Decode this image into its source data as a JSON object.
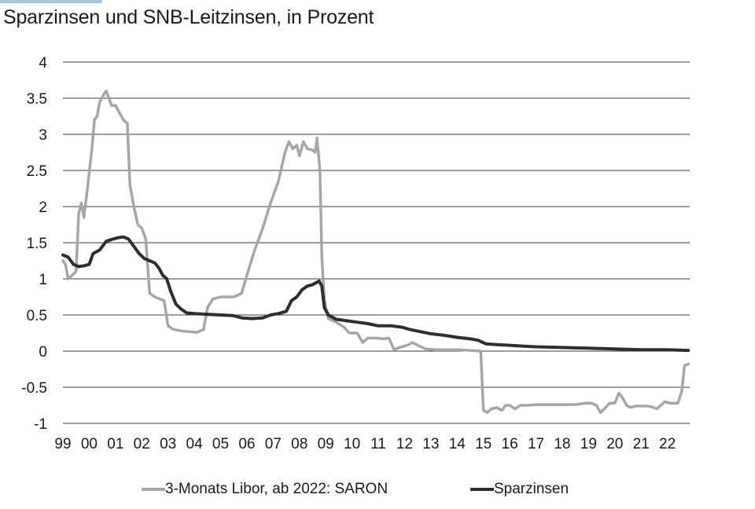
{
  "chart_data": {
    "type": "line",
    "title": "Sparzinsen und SNB-Leitzinsen, in Prozent",
    "xlabel": "",
    "ylabel": "",
    "ylim": [
      -1,
      4
    ],
    "xlim": [
      1999.0,
      2022.85
    ],
    "yticks": [
      {
        "value": 4,
        "label": "4"
      },
      {
        "value": 3.5,
        "label": "3.5"
      },
      {
        "value": 3,
        "label": "3"
      },
      {
        "value": 2.5,
        "label": "2.5"
      },
      {
        "value": 2,
        "label": "2"
      },
      {
        "value": 1.5,
        "label": "1.5"
      },
      {
        "value": 1,
        "label": "1"
      },
      {
        "value": 0.5,
        "label": "0.5"
      },
      {
        "value": 0,
        "label": "0"
      },
      {
        "value": -0.5,
        "label": "-0.5"
      },
      {
        "value": -1,
        "label": "-1"
      }
    ],
    "xticks": [
      {
        "value": 1999,
        "label": "99"
      },
      {
        "value": 2000,
        "label": "00"
      },
      {
        "value": 2001,
        "label": "01"
      },
      {
        "value": 2002,
        "label": "02"
      },
      {
        "value": 2003,
        "label": "03"
      },
      {
        "value": 2004,
        "label": "04"
      },
      {
        "value": 2005,
        "label": "05"
      },
      {
        "value": 2006,
        "label": "06"
      },
      {
        "value": 2007,
        "label": "07"
      },
      {
        "value": 2008,
        "label": "08"
      },
      {
        "value": 2009,
        "label": "09"
      },
      {
        "value": 2010,
        "label": "10"
      },
      {
        "value": 2011,
        "label": "11"
      },
      {
        "value": 2012,
        "label": "12"
      },
      {
        "value": 2013,
        "label": "13"
      },
      {
        "value": 2014,
        "label": "14"
      },
      {
        "value": 2015,
        "label": "15"
      },
      {
        "value": 2016,
        "label": "16"
      },
      {
        "value": 2017,
        "label": "17"
      },
      {
        "value": 2018,
        "label": "18"
      },
      {
        "value": 2019,
        "label": "19"
      },
      {
        "value": 2020,
        "label": "20"
      },
      {
        "value": 2021,
        "label": "21"
      },
      {
        "value": 2022,
        "label": "22"
      }
    ],
    "grid": "horizontal",
    "legend_position": "bottom",
    "series": [
      {
        "name": "3-Monats Libor, ab 2022: SARON",
        "color": "#a6a6a6",
        "points": [
          [
            1999.0,
            1.25
          ],
          [
            1999.1,
            1.2
          ],
          [
            1999.2,
            1.0
          ],
          [
            1999.35,
            1.05
          ],
          [
            1999.5,
            1.1
          ],
          [
            1999.6,
            1.9
          ],
          [
            1999.7,
            2.05
          ],
          [
            1999.8,
            1.85
          ],
          [
            1999.95,
            2.3
          ],
          [
            2000.1,
            2.8
          ],
          [
            2000.2,
            3.2
          ],
          [
            2000.3,
            3.25
          ],
          [
            2000.4,
            3.45
          ],
          [
            2000.55,
            3.55
          ],
          [
            2000.65,
            3.6
          ],
          [
            2000.75,
            3.5
          ],
          [
            2000.85,
            3.4
          ],
          [
            2001.0,
            3.4
          ],
          [
            2001.15,
            3.3
          ],
          [
            2001.3,
            3.2
          ],
          [
            2001.45,
            3.15
          ],
          [
            2001.55,
            2.3
          ],
          [
            2001.7,
            2.0
          ],
          [
            2001.85,
            1.75
          ],
          [
            2002.0,
            1.7
          ],
          [
            2002.15,
            1.55
          ],
          [
            2002.3,
            0.8
          ],
          [
            2002.5,
            0.75
          ],
          [
            2002.7,
            0.72
          ],
          [
            2002.85,
            0.7
          ],
          [
            2003.0,
            0.35
          ],
          [
            2003.2,
            0.3
          ],
          [
            2003.5,
            0.28
          ],
          [
            2003.8,
            0.27
          ],
          [
            2004.1,
            0.26
          ],
          [
            2004.35,
            0.3
          ],
          [
            2004.5,
            0.6
          ],
          [
            2004.7,
            0.72
          ],
          [
            2005.0,
            0.75
          ],
          [
            2005.5,
            0.75
          ],
          [
            2005.8,
            0.8
          ],
          [
            2006.0,
            1.05
          ],
          [
            2006.3,
            1.4
          ],
          [
            2006.6,
            1.7
          ],
          [
            2006.9,
            2.05
          ],
          [
            2007.2,
            2.35
          ],
          [
            2007.45,
            2.75
          ],
          [
            2007.6,
            2.9
          ],
          [
            2007.75,
            2.8
          ],
          [
            2007.9,
            2.85
          ],
          [
            2008.0,
            2.7
          ],
          [
            2008.15,
            2.9
          ],
          [
            2008.3,
            2.8
          ],
          [
            2008.5,
            2.78
          ],
          [
            2008.6,
            2.75
          ],
          [
            2008.67,
            2.95
          ],
          [
            2008.78,
            2.5
          ],
          [
            2008.85,
            1.3
          ],
          [
            2008.95,
            0.7
          ],
          [
            2009.1,
            0.45
          ],
          [
            2009.4,
            0.4
          ],
          [
            2009.7,
            0.33
          ],
          [
            2009.9,
            0.25
          ],
          [
            2010.2,
            0.25
          ],
          [
            2010.4,
            0.12
          ],
          [
            2010.6,
            0.18
          ],
          [
            2010.9,
            0.18
          ],
          [
            2011.2,
            0.17
          ],
          [
            2011.4,
            0.18
          ],
          [
            2011.6,
            0.02
          ],
          [
            2011.8,
            0.05
          ],
          [
            2012.1,
            0.08
          ],
          [
            2012.3,
            0.12
          ],
          [
            2012.5,
            0.08
          ],
          [
            2012.8,
            0.03
          ],
          [
            2013.2,
            0.02
          ],
          [
            2014.0,
            0.02
          ],
          [
            2014.5,
            0.01
          ],
          [
            2014.9,
            0.0
          ],
          [
            2015.0,
            -0.82
          ],
          [
            2015.15,
            -0.85
          ],
          [
            2015.3,
            -0.8
          ],
          [
            2015.5,
            -0.78
          ],
          [
            2015.7,
            -0.82
          ],
          [
            2015.85,
            -0.75
          ],
          [
            2016.0,
            -0.75
          ],
          [
            2016.2,
            -0.8
          ],
          [
            2016.4,
            -0.75
          ],
          [
            2016.7,
            -0.75
          ],
          [
            2017.0,
            -0.74
          ],
          [
            2017.5,
            -0.74
          ],
          [
            2018.0,
            -0.74
          ],
          [
            2018.5,
            -0.74
          ],
          [
            2018.9,
            -0.72
          ],
          [
            2019.1,
            -0.72
          ],
          [
            2019.3,
            -0.75
          ],
          [
            2019.45,
            -0.85
          ],
          [
            2019.6,
            -0.8
          ],
          [
            2019.8,
            -0.72
          ],
          [
            2020.0,
            -0.72
          ],
          [
            2020.15,
            -0.58
          ],
          [
            2020.3,
            -0.65
          ],
          [
            2020.45,
            -0.75
          ],
          [
            2020.6,
            -0.78
          ],
          [
            2020.8,
            -0.76
          ],
          [
            2021.0,
            -0.76
          ],
          [
            2021.2,
            -0.76
          ],
          [
            2021.4,
            -0.77
          ],
          [
            2021.6,
            -0.8
          ],
          [
            2021.75,
            -0.75
          ],
          [
            2021.9,
            -0.7
          ],
          [
            2022.1,
            -0.72
          ],
          [
            2022.4,
            -0.72
          ],
          [
            2022.55,
            -0.55
          ],
          [
            2022.65,
            -0.2
          ],
          [
            2022.8,
            -0.18
          ]
        ]
      },
      {
        "name": "Sparzinsen",
        "color": "#2e2e2e",
        "points": [
          [
            1999.0,
            1.33
          ],
          [
            1999.2,
            1.3
          ],
          [
            1999.4,
            1.2
          ],
          [
            1999.6,
            1.17
          ],
          [
            1999.8,
            1.18
          ],
          [
            2000.0,
            1.2
          ],
          [
            2000.15,
            1.35
          ],
          [
            2000.4,
            1.4
          ],
          [
            2000.65,
            1.52
          ],
          [
            2000.9,
            1.55
          ],
          [
            2001.1,
            1.57
          ],
          [
            2001.3,
            1.58
          ],
          [
            2001.5,
            1.55
          ],
          [
            2001.7,
            1.45
          ],
          [
            2001.9,
            1.35
          ],
          [
            2002.1,
            1.28
          ],
          [
            2002.3,
            1.25
          ],
          [
            2002.5,
            1.22
          ],
          [
            2002.65,
            1.15
          ],
          [
            2002.8,
            1.05
          ],
          [
            2002.95,
            1.0
          ],
          [
            2003.1,
            0.83
          ],
          [
            2003.3,
            0.65
          ],
          [
            2003.5,
            0.58
          ],
          [
            2003.7,
            0.53
          ],
          [
            2004.0,
            0.52
          ],
          [
            2004.5,
            0.51
          ],
          [
            2005.0,
            0.5
          ],
          [
            2005.5,
            0.49
          ],
          [
            2005.8,
            0.46
          ],
          [
            2006.2,
            0.45
          ],
          [
            2006.6,
            0.46
          ],
          [
            2006.9,
            0.5
          ],
          [
            2007.2,
            0.52
          ],
          [
            2007.5,
            0.55
          ],
          [
            2007.7,
            0.7
          ],
          [
            2007.9,
            0.75
          ],
          [
            2008.1,
            0.85
          ],
          [
            2008.3,
            0.9
          ],
          [
            2008.5,
            0.92
          ],
          [
            2008.75,
            0.97
          ],
          [
            2008.85,
            0.9
          ],
          [
            2008.95,
            0.6
          ],
          [
            2009.1,
            0.5
          ],
          [
            2009.4,
            0.44
          ],
          [
            2009.8,
            0.42
          ],
          [
            2010.2,
            0.4
          ],
          [
            2010.6,
            0.38
          ],
          [
            2011.0,
            0.35
          ],
          [
            2011.5,
            0.35
          ],
          [
            2011.9,
            0.33
          ],
          [
            2012.2,
            0.3
          ],
          [
            2012.6,
            0.27
          ],
          [
            2013.0,
            0.24
          ],
          [
            2013.5,
            0.22
          ],
          [
            2014.0,
            0.19
          ],
          [
            2014.5,
            0.17
          ],
          [
            2014.8,
            0.15
          ],
          [
            2015.1,
            0.1
          ],
          [
            2015.5,
            0.09
          ],
          [
            2016.0,
            0.08
          ],
          [
            2016.5,
            0.07
          ],
          [
            2017.0,
            0.06
          ],
          [
            2018.0,
            0.05
          ],
          [
            2019.0,
            0.04
          ],
          [
            2020.0,
            0.03
          ],
          [
            2021.0,
            0.02
          ],
          [
            2022.0,
            0.02
          ],
          [
            2022.8,
            0.01
          ]
        ]
      }
    ]
  },
  "legend": {
    "items": [
      {
        "label": "3-Monats Libor, ab 2022: SARON",
        "color": "#a6a6a6"
      },
      {
        "label": "Sparzinsen",
        "color": "#2e2e2e"
      }
    ]
  }
}
